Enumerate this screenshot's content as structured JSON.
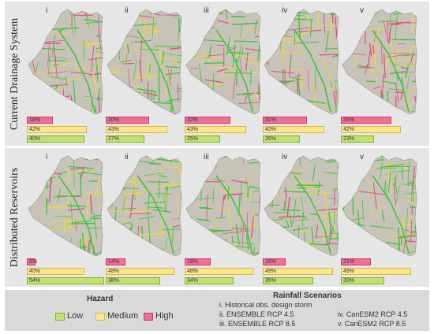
{
  "rows": [
    {
      "label": "Current Drainage System",
      "panels": [
        {
          "numeral": "i",
          "high": "18%",
          "medium": "42%",
          "low": "40%",
          "high_v": 18,
          "medium_v": 42,
          "low_v": 40
        },
        {
          "numeral": "ii",
          "high": "30%",
          "medium": "43%",
          "low": "27%",
          "high_v": 30,
          "medium_v": 43,
          "low_v": 27
        },
        {
          "numeral": "iii",
          "high": "32%",
          "medium": "43%",
          "low": "25%",
          "high_v": 32,
          "medium_v": 43,
          "low_v": 25
        },
        {
          "numeral": "iv",
          "high": "31%",
          "medium": "43%",
          "low": "26%",
          "high_v": 31,
          "medium_v": 43,
          "low_v": 26
        },
        {
          "numeral": "v",
          "high": "35%",
          "medium": "42%",
          "low": "23%",
          "high_v": 35,
          "medium_v": 42,
          "low_v": 23
        }
      ]
    },
    {
      "label": "Distributed Reservoirs",
      "panels": [
        {
          "numeral": "i",
          "high": "6%",
          "medium": "40%",
          "low": "54%",
          "high_v": 6,
          "medium_v": 40,
          "low_v": 54
        },
        {
          "numeral": "ii",
          "high": "14%",
          "medium": "48%",
          "low": "38%",
          "high_v": 14,
          "medium_v": 48,
          "low_v": 38
        },
        {
          "numeral": "iii",
          "high": "18%",
          "medium": "48%",
          "low": "34%",
          "high_v": 18,
          "medium_v": 48,
          "low_v": 34
        },
        {
          "numeral": "iv",
          "high": "16%",
          "medium": "49%",
          "low": "35%",
          "high_v": 16,
          "medium_v": 49,
          "low_v": 35
        },
        {
          "numeral": "v",
          "high": "21%",
          "medium": "49%",
          "low": "30%",
          "high_v": 21,
          "medium_v": 49,
          "low_v": 30
        }
      ]
    }
  ],
  "legend": {
    "hazard_title": "Hazard",
    "low": "Low",
    "medium": "Medium",
    "high": "High",
    "scenarios_title": "Rainfall Scenarios",
    "scenario_i": "i.   Historical obs. design storm",
    "scenario_ii": "ii.   ENSEMBLE RCP 4.5",
    "scenario_iii": "iii.  ENSEMBLE RCP 8.5",
    "scenario_iv": "iv. CanESM2 RCP 4.5",
    "scenario_v": "v.  CanESM2 RCP 8.5"
  },
  "colors": {
    "high": "#ef6f95",
    "medium": "#fde68a",
    "low": "#c4e170",
    "map_fill": "#c7c3b8",
    "road_green": "#3fc63c",
    "road_pink": "#e14f8a",
    "road_yellow": "#f2d640"
  }
}
